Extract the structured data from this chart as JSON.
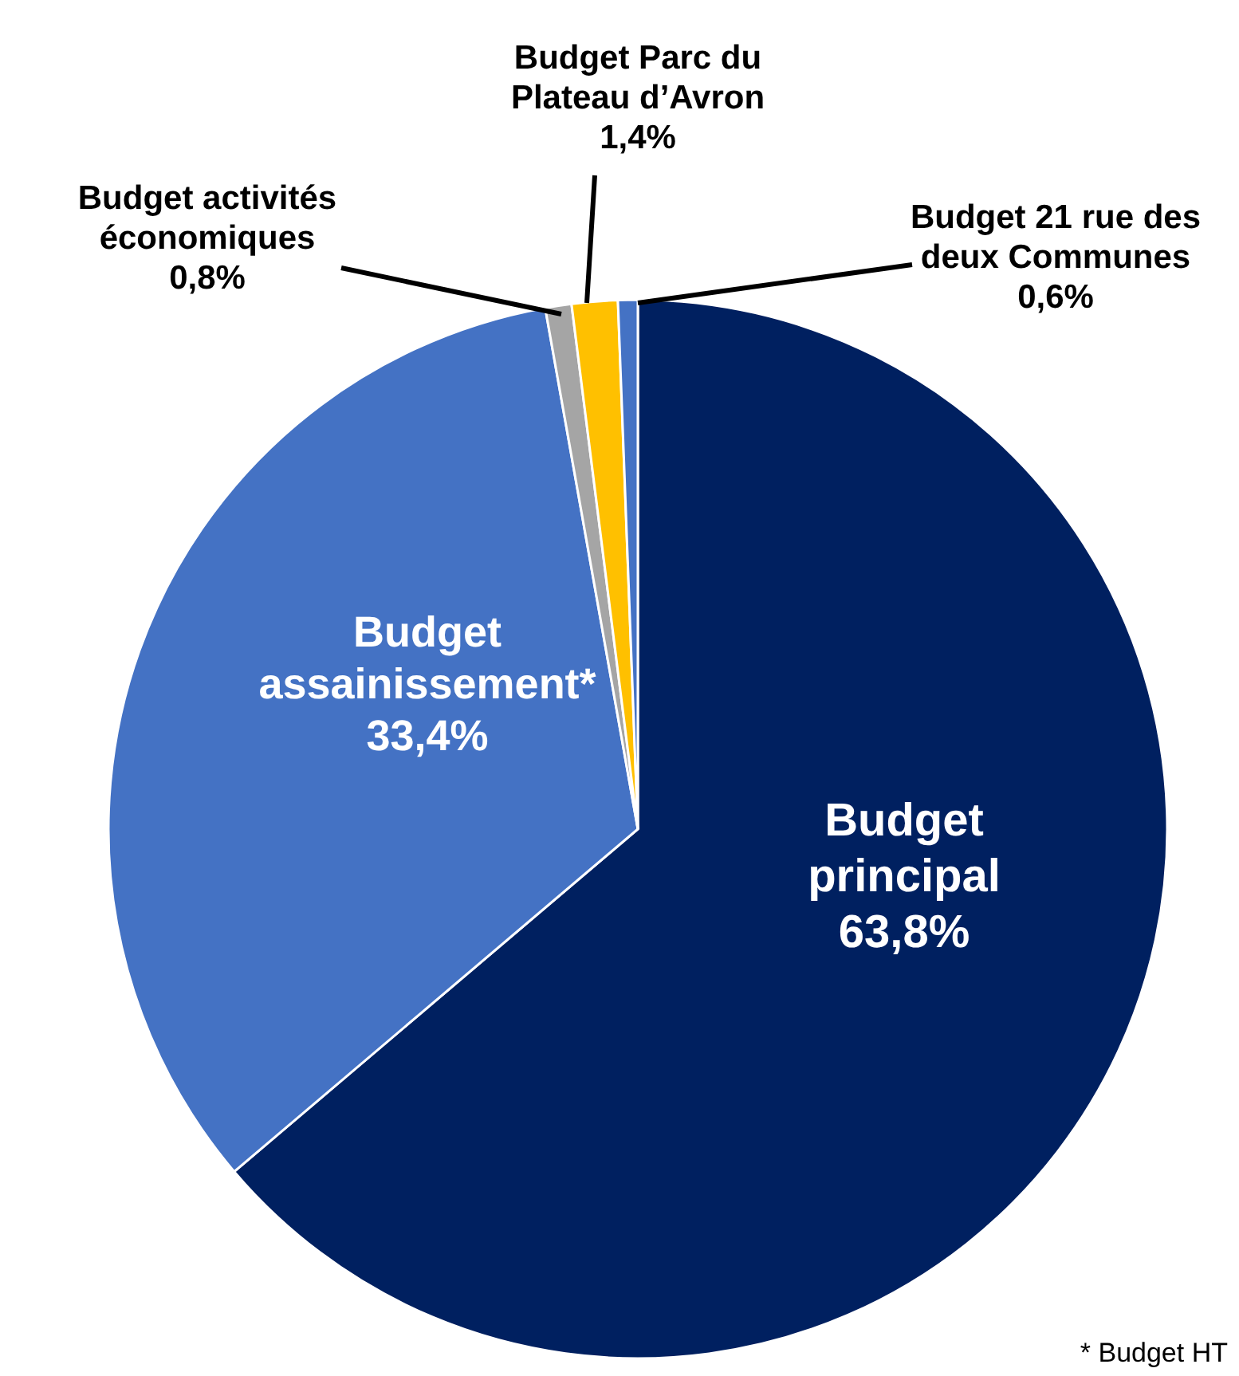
{
  "chart_data": {
    "type": "pie",
    "categories": [
      "Budget principal",
      "Budget assainissement*",
      "Budget activités économiques",
      "Budget Parc du Plateau d’Avron",
      "Budget 21 rue des deux Communes"
    ],
    "values": [
      63.8,
      33.4,
      0.8,
      1.4,
      0.6
    ],
    "colors": [
      "#002060",
      "#4472c4",
      "#a5a5a5",
      "#ffc000",
      "#4472c4"
    ],
    "value_labels": [
      "63,8%",
      "33,4%",
      "0,8%",
      "1,4%",
      "0,6%"
    ],
    "annotations": [
      "* Budget HT"
    ]
  }
}
